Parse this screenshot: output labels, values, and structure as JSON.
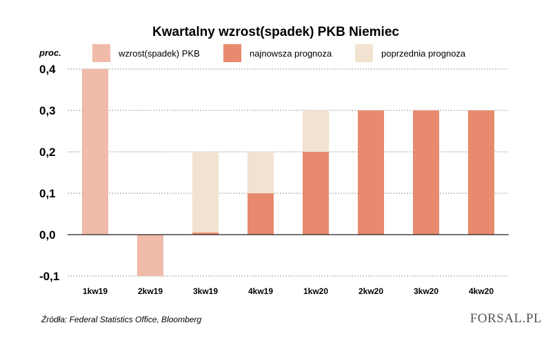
{
  "chart_data": {
    "type": "bar",
    "title": "Kwartalny wzrost(spadek) PKB Niemiec",
    "unit_label": "proc.",
    "categories": [
      "1kw19",
      "2kw19",
      "3kw19",
      "4kw19",
      "1kw20",
      "2kw20",
      "3kw20",
      "4kw20"
    ],
    "series": [
      {
        "name": "wzrost(spadek) PKB",
        "color": "#f0bba8",
        "values": [
          0.4,
          -0.1,
          null,
          null,
          null,
          null,
          null,
          null
        ]
      },
      {
        "name": "najnowsza prognoza",
        "color": "#e88a6d",
        "values": [
          null,
          null,
          0.0,
          0.1,
          0.2,
          0.3,
          0.3,
          0.3
        ]
      },
      {
        "name": "poprzednia prognoza",
        "color": "#f2e3d1",
        "values": [
          null,
          null,
          0.2,
          0.2,
          0.3,
          null,
          null,
          null
        ]
      }
    ],
    "ylim": [
      -0.1,
      0.4
    ],
    "yticks": [
      -0.1,
      0.0,
      0.1,
      0.2,
      0.3,
      0.4
    ],
    "ytick_labels": [
      "-0,1",
      "0,0",
      "0,1",
      "0,2",
      "0,3",
      "0,4"
    ],
    "grid": true,
    "legend_position": "top",
    "xlabel": "",
    "ylabel": ""
  },
  "source": "Źródła: Federal Statistics Office, Bloomberg",
  "logo": {
    "text": "FORSAL.PL"
  }
}
